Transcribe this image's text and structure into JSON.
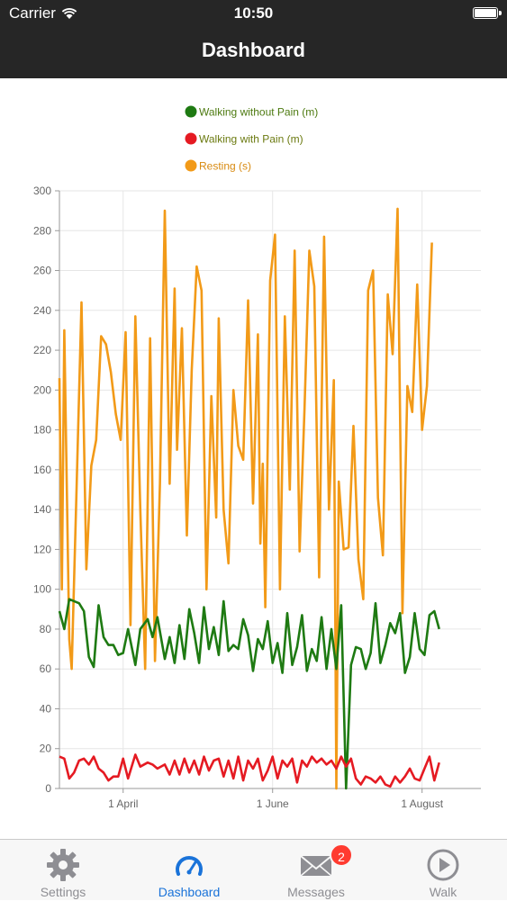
{
  "status": {
    "carrier": "Carrier",
    "time": "10:50"
  },
  "header": {
    "title": "Dashboard"
  },
  "tabs": [
    {
      "label": "Settings",
      "icon": "gear-icon",
      "active": false
    },
    {
      "label": "Dashboard",
      "icon": "gauge-icon",
      "active": true
    },
    {
      "label": "Messages",
      "icon": "envelope-icon",
      "active": false,
      "badge": "2"
    },
    {
      "label": "Walk",
      "icon": "play-circle-icon",
      "active": false
    }
  ],
  "colors": {
    "without_pain": "#1e7a12",
    "with_pain": "#e51a22",
    "resting": "#f29a18",
    "tab_active": "#1a73d9"
  },
  "chart_data": {
    "type": "line",
    "legend": [
      "Walking without Pain (m)",
      "Walking with Pain (m)",
      "Resting (s)"
    ],
    "legend_position": "top",
    "grid": true,
    "ylim": [
      0,
      300
    ],
    "yticks": [
      "0",
      "20",
      "40",
      "60",
      "80",
      "100",
      "120",
      "140",
      "160",
      "180",
      "200",
      "220",
      "240",
      "260",
      "280",
      "300"
    ],
    "xlim": [
      "2017-03-06",
      "2017-08-25"
    ],
    "xticks": [
      {
        "label": "1 April",
        "date": "2017-04-01"
      },
      {
        "label": "1 June",
        "date": "2017-06-01"
      },
      {
        "label": "1 August",
        "date": "2017-08-01"
      }
    ],
    "series": [
      {
        "name": "Walking without Pain (m)",
        "color": "#1e7a12",
        "points": [
          [
            "2017-03-06",
            89
          ],
          [
            "2017-03-08",
            80
          ],
          [
            "2017-03-10",
            95
          ],
          [
            "2017-03-12",
            94
          ],
          [
            "2017-03-14",
            93
          ],
          [
            "2017-03-16",
            89
          ],
          [
            "2017-03-18",
            66
          ],
          [
            "2017-03-20",
            61
          ],
          [
            "2017-03-22",
            92
          ],
          [
            "2017-03-24",
            76
          ],
          [
            "2017-03-26",
            72
          ],
          [
            "2017-03-28",
            72
          ],
          [
            "2017-03-30",
            67
          ],
          [
            "2017-04-01",
            68
          ],
          [
            "2017-04-03",
            80
          ],
          [
            "2017-04-06",
            62
          ],
          [
            "2017-04-08",
            80
          ],
          [
            "2017-04-11",
            85
          ],
          [
            "2017-04-13",
            76
          ],
          [
            "2017-04-15",
            86
          ],
          [
            "2017-04-18",
            65
          ],
          [
            "2017-04-20",
            76
          ],
          [
            "2017-04-22",
            63
          ],
          [
            "2017-04-24",
            82
          ],
          [
            "2017-04-26",
            65
          ],
          [
            "2017-04-28",
            90
          ],
          [
            "2017-04-30",
            78
          ],
          [
            "2017-05-02",
            63
          ],
          [
            "2017-05-04",
            91
          ],
          [
            "2017-05-06",
            70
          ],
          [
            "2017-05-08",
            81
          ],
          [
            "2017-05-10",
            67
          ],
          [
            "2017-05-12",
            94
          ],
          [
            "2017-05-14",
            69
          ],
          [
            "2017-05-16",
            72
          ],
          [
            "2017-05-18",
            70
          ],
          [
            "2017-05-20",
            85
          ],
          [
            "2017-05-22",
            77
          ],
          [
            "2017-05-24",
            59
          ],
          [
            "2017-05-26",
            75
          ],
          [
            "2017-05-28",
            70
          ],
          [
            "2017-05-30",
            84
          ],
          [
            "2017-06-01",
            63
          ],
          [
            "2017-06-03",
            73
          ],
          [
            "2017-06-05",
            58
          ],
          [
            "2017-06-07",
            88
          ],
          [
            "2017-06-09",
            62
          ],
          [
            "2017-06-11",
            71
          ],
          [
            "2017-06-13",
            87
          ],
          [
            "2017-06-15",
            59
          ],
          [
            "2017-06-17",
            70
          ],
          [
            "2017-06-19",
            64
          ],
          [
            "2017-06-21",
            86
          ],
          [
            "2017-06-23",
            60
          ],
          [
            "2017-06-25",
            80
          ],
          [
            "2017-06-27",
            60
          ],
          [
            "2017-06-29",
            92
          ],
          [
            "2017-07-01",
            0
          ],
          [
            "2017-07-03",
            62
          ],
          [
            "2017-07-05",
            71
          ],
          [
            "2017-07-07",
            70
          ],
          [
            "2017-07-09",
            60
          ],
          [
            "2017-07-11",
            68
          ],
          [
            "2017-07-13",
            93
          ],
          [
            "2017-07-15",
            63
          ],
          [
            "2017-07-17",
            72
          ],
          [
            "2017-07-19",
            83
          ],
          [
            "2017-07-21",
            78
          ],
          [
            "2017-07-23",
            88
          ],
          [
            "2017-07-25",
            58
          ],
          [
            "2017-07-27",
            66
          ],
          [
            "2017-07-29",
            88
          ],
          [
            "2017-07-31",
            70
          ],
          [
            "2017-08-02",
            67
          ],
          [
            "2017-08-04",
            87
          ],
          [
            "2017-08-06",
            89
          ],
          [
            "2017-08-08",
            80
          ]
        ]
      },
      {
        "name": "Walking with Pain (m)",
        "color": "#e51a22",
        "points": [
          [
            "2017-03-06",
            16
          ],
          [
            "2017-03-08",
            15
          ],
          [
            "2017-03-10",
            5
          ],
          [
            "2017-03-12",
            8
          ],
          [
            "2017-03-14",
            14
          ],
          [
            "2017-03-16",
            15
          ],
          [
            "2017-03-18",
            12
          ],
          [
            "2017-03-20",
            16
          ],
          [
            "2017-03-22",
            10
          ],
          [
            "2017-03-24",
            8
          ],
          [
            "2017-03-26",
            4
          ],
          [
            "2017-03-28",
            6
          ],
          [
            "2017-03-30",
            6
          ],
          [
            "2017-04-01",
            15
          ],
          [
            "2017-04-03",
            5
          ],
          [
            "2017-04-06",
            17
          ],
          [
            "2017-04-08",
            11
          ],
          [
            "2017-04-11",
            13
          ],
          [
            "2017-04-13",
            12
          ],
          [
            "2017-04-15",
            10
          ],
          [
            "2017-04-18",
            12
          ],
          [
            "2017-04-20",
            7
          ],
          [
            "2017-04-22",
            14
          ],
          [
            "2017-04-24",
            7
          ],
          [
            "2017-04-26",
            15
          ],
          [
            "2017-04-28",
            8
          ],
          [
            "2017-04-30",
            14
          ],
          [
            "2017-05-02",
            7
          ],
          [
            "2017-05-04",
            16
          ],
          [
            "2017-05-06",
            9
          ],
          [
            "2017-05-08",
            14
          ],
          [
            "2017-05-10",
            15
          ],
          [
            "2017-05-12",
            6
          ],
          [
            "2017-05-14",
            14
          ],
          [
            "2017-05-16",
            5
          ],
          [
            "2017-05-18",
            16
          ],
          [
            "2017-05-20",
            4
          ],
          [
            "2017-05-22",
            14
          ],
          [
            "2017-05-24",
            10
          ],
          [
            "2017-05-26",
            15
          ],
          [
            "2017-05-28",
            4
          ],
          [
            "2017-05-30",
            9
          ],
          [
            "2017-06-01",
            16
          ],
          [
            "2017-06-03",
            5
          ],
          [
            "2017-06-05",
            14
          ],
          [
            "2017-06-07",
            11
          ],
          [
            "2017-06-09",
            15
          ],
          [
            "2017-06-11",
            3
          ],
          [
            "2017-06-13",
            14
          ],
          [
            "2017-06-15",
            11
          ],
          [
            "2017-06-17",
            16
          ],
          [
            "2017-06-19",
            13
          ],
          [
            "2017-06-21",
            15
          ],
          [
            "2017-06-23",
            12
          ],
          [
            "2017-06-25",
            14
          ],
          [
            "2017-06-27",
            10
          ],
          [
            "2017-06-29",
            16
          ],
          [
            "2017-07-01",
            11
          ],
          [
            "2017-07-03",
            15
          ],
          [
            "2017-07-05",
            5
          ],
          [
            "2017-07-07",
            2
          ],
          [
            "2017-07-09",
            6
          ],
          [
            "2017-07-11",
            5
          ],
          [
            "2017-07-13",
            3
          ],
          [
            "2017-07-15",
            6
          ],
          [
            "2017-07-17",
            2
          ],
          [
            "2017-07-19",
            1
          ],
          [
            "2017-07-21",
            6
          ],
          [
            "2017-07-23",
            3
          ],
          [
            "2017-07-25",
            6
          ],
          [
            "2017-07-27",
            10
          ],
          [
            "2017-07-29",
            5
          ],
          [
            "2017-07-31",
            4
          ],
          [
            "2017-08-02",
            10
          ],
          [
            "2017-08-04",
            16
          ],
          [
            "2017-08-06",
            4
          ],
          [
            "2017-08-08",
            13
          ]
        ]
      },
      {
        "name": "Resting (s)",
        "color": "#f29a18",
        "points": [
          [
            "2017-03-06",
            206
          ],
          [
            "2017-03-07",
            100
          ],
          [
            "2017-03-08",
            230
          ],
          [
            "2017-03-10",
            75
          ],
          [
            "2017-03-11",
            60
          ],
          [
            "2017-03-13",
            150
          ],
          [
            "2017-03-15",
            244
          ],
          [
            "2017-03-17",
            110
          ],
          [
            "2017-03-19",
            162
          ],
          [
            "2017-03-21",
            175
          ],
          [
            "2017-03-23",
            227
          ],
          [
            "2017-03-25",
            223
          ],
          [
            "2017-03-27",
            209
          ],
          [
            "2017-03-29",
            188
          ],
          [
            "2017-03-31",
            175
          ],
          [
            "2017-04-02",
            229
          ],
          [
            "2017-04-04",
            82
          ],
          [
            "2017-04-06",
            237
          ],
          [
            "2017-04-08",
            140
          ],
          [
            "2017-04-10",
            60
          ],
          [
            "2017-04-12",
            226
          ],
          [
            "2017-04-14",
            64
          ],
          [
            "2017-04-16",
            153
          ],
          [
            "2017-04-18",
            290
          ],
          [
            "2017-04-20",
            153
          ],
          [
            "2017-04-22",
            251
          ],
          [
            "2017-04-23",
            170
          ],
          [
            "2017-04-25",
            231
          ],
          [
            "2017-04-27",
            127
          ],
          [
            "2017-04-29",
            210
          ],
          [
            "2017-05-01",
            262
          ],
          [
            "2017-05-03",
            250
          ],
          [
            "2017-05-05",
            100
          ],
          [
            "2017-05-07",
            197
          ],
          [
            "2017-05-09",
            136
          ],
          [
            "2017-05-10",
            236
          ],
          [
            "2017-05-12",
            140
          ],
          [
            "2017-05-14",
            113
          ],
          [
            "2017-05-16",
            200
          ],
          [
            "2017-05-18",
            172
          ],
          [
            "2017-05-20",
            165
          ],
          [
            "2017-05-22",
            245
          ],
          [
            "2017-05-24",
            143
          ],
          [
            "2017-05-26",
            228
          ],
          [
            "2017-05-27",
            123
          ],
          [
            "2017-05-28",
            163
          ],
          [
            "2017-05-29",
            91
          ],
          [
            "2017-05-31",
            255
          ],
          [
            "2017-06-02",
            278
          ],
          [
            "2017-06-04",
            100
          ],
          [
            "2017-06-06",
            237
          ],
          [
            "2017-06-08",
            150
          ],
          [
            "2017-06-10",
            270
          ],
          [
            "2017-06-12",
            119
          ],
          [
            "2017-06-14",
            190
          ],
          [
            "2017-06-16",
            270
          ],
          [
            "2017-06-18",
            252
          ],
          [
            "2017-06-20",
            106
          ],
          [
            "2017-06-22",
            277
          ],
          [
            "2017-06-24",
            140
          ],
          [
            "2017-06-26",
            205
          ],
          [
            "2017-06-27",
            0
          ],
          [
            "2017-06-28",
            154
          ],
          [
            "2017-06-30",
            120
          ],
          [
            "2017-07-02",
            121
          ],
          [
            "2017-07-04",
            182
          ],
          [
            "2017-07-06",
            115
          ],
          [
            "2017-07-08",
            95
          ],
          [
            "2017-07-10",
            250
          ],
          [
            "2017-07-12",
            260
          ],
          [
            "2017-07-14",
            146
          ],
          [
            "2017-07-16",
            117
          ],
          [
            "2017-07-18",
            248
          ],
          [
            "2017-07-20",
            218
          ],
          [
            "2017-07-22",
            291
          ],
          [
            "2017-07-24",
            88
          ],
          [
            "2017-07-26",
            202
          ],
          [
            "2017-07-28",
            189
          ],
          [
            "2017-07-30",
            253
          ],
          [
            "2017-08-01",
            180
          ],
          [
            "2017-08-03",
            202
          ],
          [
            "2017-08-05",
            274
          ]
        ]
      }
    ]
  }
}
